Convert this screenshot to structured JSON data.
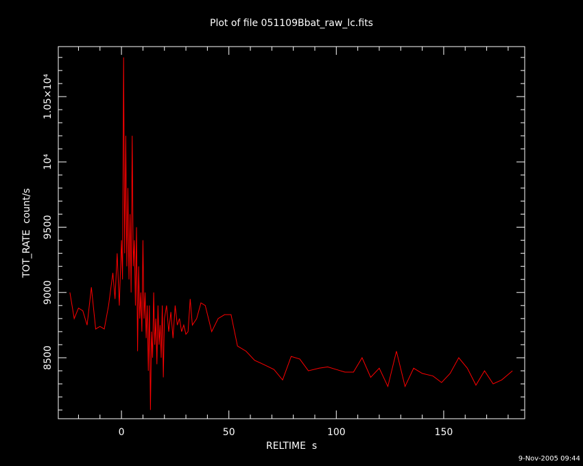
{
  "chart_data": {
    "type": "line",
    "title": "Plot of file 051109Bbat_raw_lc.fits",
    "xlabel": "RELTIME  s",
    "ylabel": "TOT_RATE  count/s",
    "footer": "9-Nov-2005 09:44",
    "color": "#ff0000",
    "xlim": [
      -29.4,
      187.7
    ],
    "ylim": [
      8033,
      10883
    ],
    "xticks": [
      0,
      50,
      100,
      150
    ],
    "yticks": [
      8500,
      9000,
      9500,
      {
        "value": 10000,
        "label": "10⁴"
      },
      {
        "value": 10500,
        "label": "1.05×10⁴"
      }
    ],
    "xminorticks": [
      -20,
      -10,
      10,
      20,
      30,
      40,
      60,
      70,
      80,
      90,
      110,
      120,
      130,
      140,
      160,
      170,
      180
    ],
    "yminorticks": [
      8100,
      8200,
      8300,
      8400,
      8600,
      8700,
      8800,
      8900,
      9100,
      9200,
      9300,
      9400,
      9600,
      9700,
      9800,
      9900,
      10100,
      10200,
      10300,
      10400,
      10600,
      10700,
      10800
    ],
    "x": [
      -24,
      -22,
      -20,
      -18,
      -16,
      -14,
      -12,
      -10,
      -8,
      -6,
      -4,
      -3,
      -2,
      -1,
      0,
      0.5,
      1,
      1.5,
      2,
      2.5,
      3,
      3.5,
      4,
      4.5,
      5,
      5.5,
      6,
      6.5,
      7,
      7.5,
      8,
      8.5,
      9,
      9.5,
      10,
      10.5,
      11,
      11.5,
      12,
      12.5,
      13,
      13.5,
      14,
      14.5,
      15,
      15.5,
      16,
      16.5,
      17,
      17.5,
      18,
      18.5,
      19,
      19.5,
      20,
      21,
      22,
      23,
      24,
      25,
      26,
      27,
      28,
      29,
      30,
      31,
      32,
      33,
      35,
      37,
      39,
      42,
      45,
      48,
      51,
      54,
      58,
      62,
      66,
      71,
      75,
      79,
      83,
      87,
      92,
      96,
      100,
      104,
      108,
      112,
      116,
      120,
      124,
      128,
      132,
      136,
      140,
      145,
      149,
      153,
      157,
      161,
      165,
      169,
      173,
      177,
      182
    ],
    "values": [
      9000,
      8800,
      8880,
      8860,
      8750,
      9040,
      8720,
      8740,
      8720,
      8900,
      9150,
      8950,
      9300,
      8900,
      9400,
      9100,
      10800,
      9300,
      10200,
      9200,
      9800,
      9100,
      9600,
      9000,
      10200,
      9200,
      9400,
      8900,
      9500,
      8550,
      9200,
      8800,
      9000,
      8700,
      9400,
      8800,
      9000,
      8650,
      8900,
      8400,
      8900,
      8100,
      8700,
      8500,
      9000,
      8600,
      8800,
      8450,
      8900,
      8600,
      8750,
      8500,
      8900,
      8350,
      8800,
      8900,
      8700,
      8850,
      8650,
      8900,
      8750,
      8800,
      8700,
      8750,
      8680,
      8700,
      8950,
      8750,
      8800,
      8920,
      8900,
      8700,
      8800,
      8830,
      8830,
      8590,
      8550,
      8480,
      8450,
      8410,
      8330,
      8510,
      8490,
      8400,
      8420,
      8430,
      8410,
      8390,
      8390,
      8500,
      8350,
      8420,
      8280,
      8550,
      8280,
      8420,
      8380,
      8360,
      8310,
      8380,
      8500,
      8420,
      8290,
      8400,
      8300,
      8330,
      8400
    ]
  }
}
